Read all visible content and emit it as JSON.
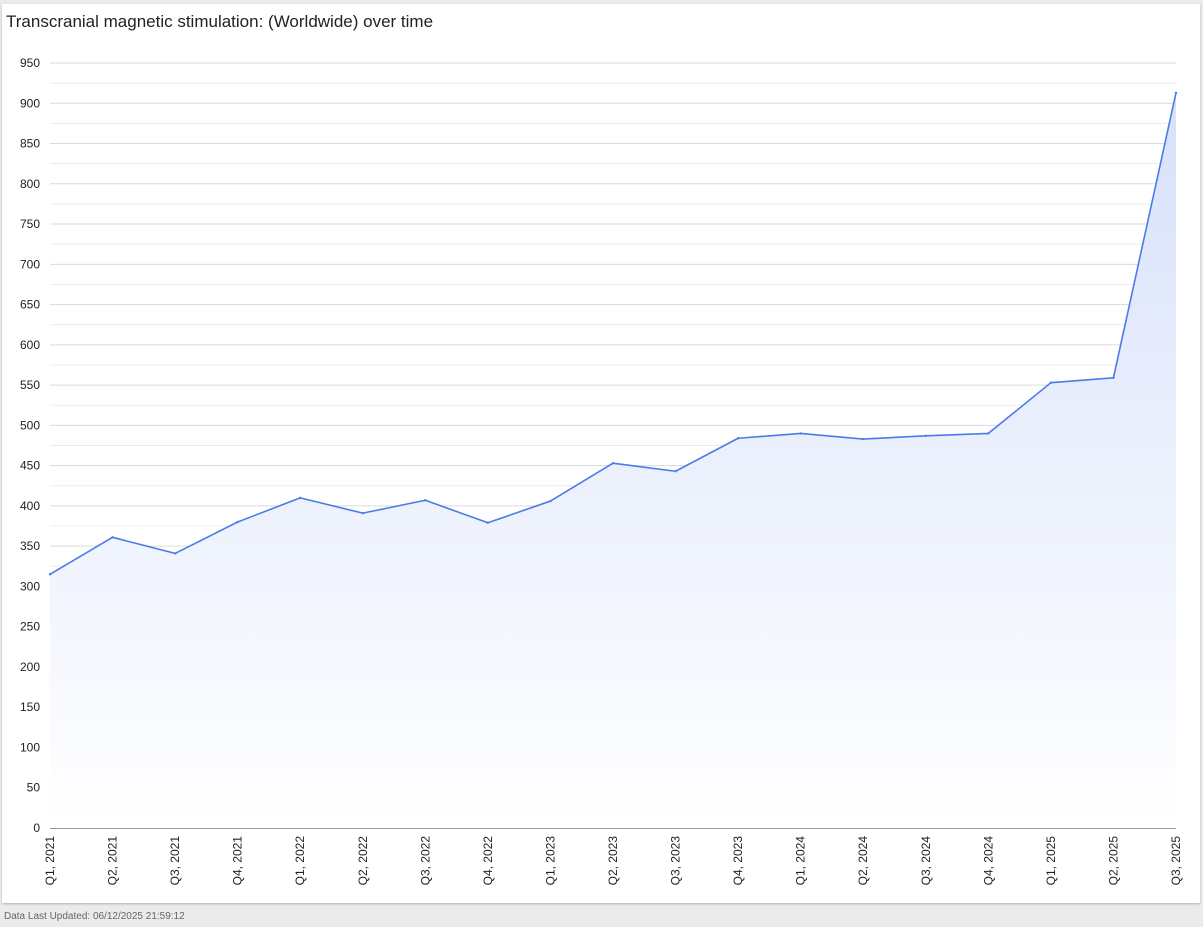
{
  "colors": {
    "line": "#4a7be8",
    "area_top": "#d7e1fa",
    "area_bottom": "#ffffff",
    "grid": "#dadada",
    "tick_label": "#222222"
  },
  "footer": {
    "text": "Data Last Updated: 06/12/2025 21:59:12"
  },
  "chart_data": {
    "type": "area",
    "title": "Transcranial magnetic stimulation: (Worldwide) over time",
    "xlabel": "",
    "ylabel": "",
    "ylim": [
      0,
      950
    ],
    "y_ticks": [
      0,
      50,
      100,
      150,
      200,
      250,
      300,
      350,
      400,
      450,
      500,
      550,
      600,
      650,
      700,
      750,
      800,
      850,
      900,
      950
    ],
    "grid": true,
    "legend": "none",
    "categories": [
      "Q1, 2021",
      "Q2, 2021",
      "Q3, 2021",
      "Q4, 2021",
      "Q1, 2022",
      "Q2, 2022",
      "Q3, 2022",
      "Q4, 2022",
      "Q1, 2023",
      "Q2, 2023",
      "Q3, 2023",
      "Q4, 2023",
      "Q1, 2024",
      "Q2, 2024",
      "Q3, 2024",
      "Q4, 2024",
      "Q1, 2025",
      "Q2, 2025",
      "Q3, 2025"
    ],
    "series": [
      {
        "values": [
          315,
          361,
          341,
          380,
          410,
          391,
          407,
          379,
          406,
          453,
          443,
          484,
          490,
          483,
          487,
          490,
          553,
          559,
          913
        ]
      }
    ]
  }
}
